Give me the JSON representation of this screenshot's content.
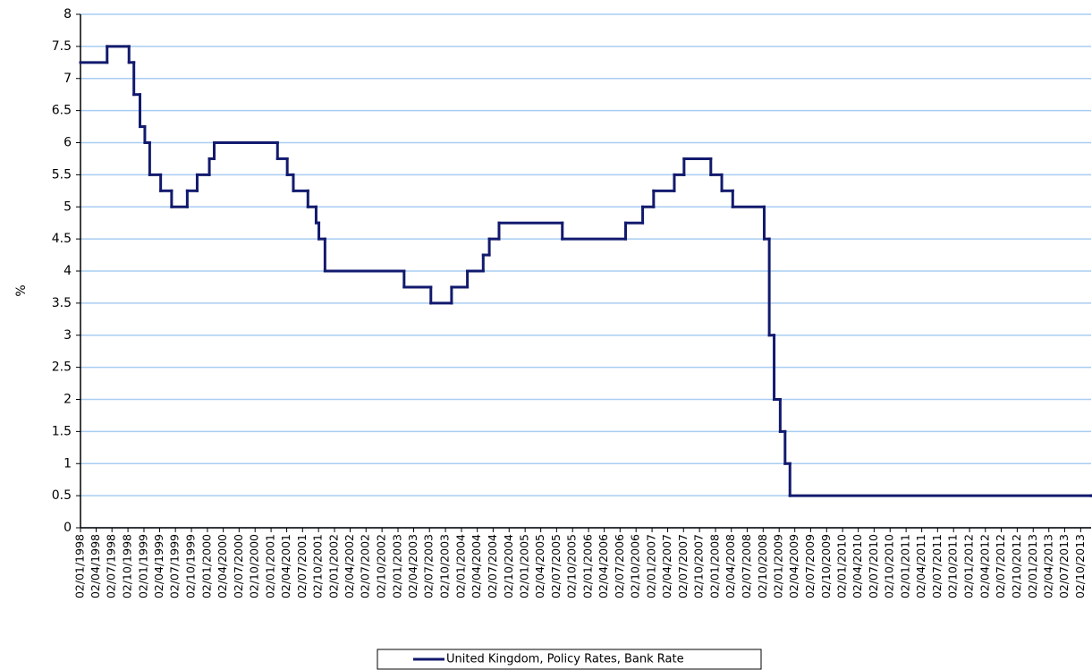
{
  "chart_data": {
    "type": "line",
    "step": true,
    "y_label": "%",
    "grid": true,
    "series": [
      {
        "name": "United Kingdom, Policy Rates, Bank Rate",
        "color": "#121a6e",
        "x": [
          "1998-01-02",
          "1998-06-04",
          "1998-10-08",
          "1998-11-05",
          "1998-12-10",
          "1999-01-07",
          "1999-02-04",
          "1999-04-08",
          "1999-06-10",
          "1999-09-08",
          "1999-11-04",
          "2000-01-13",
          "2000-02-10",
          "2001-02-08",
          "2001-04-05",
          "2001-05-10",
          "2001-08-02",
          "2001-09-18",
          "2001-10-04",
          "2001-11-08",
          "2003-02-06",
          "2003-07-10",
          "2003-11-06",
          "2004-02-05",
          "2004-05-06",
          "2004-06-10",
          "2004-08-05",
          "2005-08-04",
          "2006-08-03",
          "2006-11-09",
          "2007-01-11",
          "2007-05-10",
          "2007-07-05",
          "2007-12-06",
          "2008-02-07",
          "2008-04-10",
          "2008-10-08",
          "2008-11-06",
          "2008-12-04",
          "2009-01-08",
          "2009-02-05",
          "2009-03-05",
          "2013-12-01"
        ],
        "values": [
          7.25,
          7.5,
          7.25,
          6.75,
          6.25,
          6,
          5.5,
          5.25,
          5,
          5.25,
          5.5,
          5.75,
          6,
          5.75,
          5.5,
          5.25,
          5,
          4.75,
          4.5,
          4,
          3.75,
          3.5,
          3.75,
          4,
          4.25,
          4.5,
          4.75,
          4.5,
          4.75,
          5,
          5.25,
          5.5,
          5.75,
          5.5,
          5.25,
          5,
          4.5,
          3,
          2,
          1.5,
          1,
          0.5,
          0.5
        ]
      }
    ],
    "ylim": [
      0,
      8
    ],
    "yticks": [
      0,
      {
        "value": 0.5,
        "label": "0.5"
      },
      1,
      {
        "value": 1.5,
        "label": "1.5"
      },
      2,
      {
        "value": 2.5,
        "label": "2.5"
      },
      3,
      {
        "value": 3.5,
        "label": "3.5"
      },
      4,
      {
        "value": 4.5,
        "label": "4.5"
      },
      5,
      {
        "value": 5.5,
        "label": "5.5"
      },
      6,
      {
        "value": 6.5,
        "label": "6.5"
      },
      7,
      {
        "value": 7.5,
        "label": "7.5"
      },
      8
    ],
    "xlim": [
      "1998-01-02",
      "2013-12-01"
    ],
    "xticks": [
      {
        "value": "1998-01-02",
        "label": "02/01/1998"
      },
      {
        "value": "1998-04-02",
        "label": "02/04/1998"
      },
      {
        "value": "1998-07-02",
        "label": "02/07/1998"
      },
      {
        "value": "1998-10-02",
        "label": "02/10/1998"
      },
      {
        "value": "1999-01-02",
        "label": "02/01/1999"
      },
      {
        "value": "1999-04-02",
        "label": "02/04/1999"
      },
      {
        "value": "1999-07-02",
        "label": "02/07/1999"
      },
      {
        "value": "1999-10-02",
        "label": "02/10/1999"
      },
      {
        "value": "2000-01-02",
        "label": "02/01/2000"
      },
      {
        "value": "2000-04-02",
        "label": "02/04/2000"
      },
      {
        "value": "2000-07-02",
        "label": "02/07/2000"
      },
      {
        "value": "2000-10-02",
        "label": "02/10/2000"
      },
      {
        "value": "2001-01-02",
        "label": "02/01/2001"
      },
      {
        "value": "2001-04-02",
        "label": "02/04/2001"
      },
      {
        "value": "2001-07-02",
        "label": "02/07/2001"
      },
      {
        "value": "2001-10-02",
        "label": "02/10/2001"
      },
      {
        "value": "2002-01-02",
        "label": "02/01/2002"
      },
      {
        "value": "2002-04-02",
        "label": "02/04/2002"
      },
      {
        "value": "2002-07-02",
        "label": "02/07/2002"
      },
      {
        "value": "2002-10-02",
        "label": "02/10/2002"
      },
      {
        "value": "2003-01-02",
        "label": "02/01/2003"
      },
      {
        "value": "2003-04-02",
        "label": "02/04/2003"
      },
      {
        "value": "2003-07-02",
        "label": "02/07/2003"
      },
      {
        "value": "2003-10-02",
        "label": "02/10/2003"
      },
      {
        "value": "2004-01-02",
        "label": "02/01/2004"
      },
      {
        "value": "2004-04-02",
        "label": "02/04/2004"
      },
      {
        "value": "2004-07-02",
        "label": "02/07/2004"
      },
      {
        "value": "2004-10-02",
        "label": "02/10/2004"
      },
      {
        "value": "2005-01-02",
        "label": "02/01/2005"
      },
      {
        "value": "2005-04-02",
        "label": "02/04/2005"
      },
      {
        "value": "2005-07-02",
        "label": "02/07/2005"
      },
      {
        "value": "2005-10-02",
        "label": "02/10/2005"
      },
      {
        "value": "2006-01-02",
        "label": "02/01/2006"
      },
      {
        "value": "2006-04-02",
        "label": "02/04/2006"
      },
      {
        "value": "2006-07-02",
        "label": "02/07/2006"
      },
      {
        "value": "2006-10-02",
        "label": "02/10/2006"
      },
      {
        "value": "2007-01-02",
        "label": "02/01/2007"
      },
      {
        "value": "2007-04-02",
        "label": "02/04/2007"
      },
      {
        "value": "2007-07-02",
        "label": "02/07/2007"
      },
      {
        "value": "2007-10-02",
        "label": "02/10/2007"
      },
      {
        "value": "2008-01-02",
        "label": "02/01/2008"
      },
      {
        "value": "2008-04-02",
        "label": "02/04/2008"
      },
      {
        "value": "2008-07-02",
        "label": "02/07/2008"
      },
      {
        "value": "2008-10-02",
        "label": "02/10/2008"
      },
      {
        "value": "2009-01-02",
        "label": "02/01/2009"
      },
      {
        "value": "2009-04-02",
        "label": "02/04/2009"
      },
      {
        "value": "2009-07-02",
        "label": "02/07/2009"
      },
      {
        "value": "2009-10-02",
        "label": "02/10/2009"
      },
      {
        "value": "2010-01-02",
        "label": "02/01/2010"
      },
      {
        "value": "2010-04-02",
        "label": "02/04/2010"
      },
      {
        "value": "2010-07-02",
        "label": "02/07/2010"
      },
      {
        "value": "2010-10-02",
        "label": "02/10/2010"
      },
      {
        "value": "2011-01-02",
        "label": "02/01/2011"
      },
      {
        "value": "2011-04-02",
        "label": "02/04/2011"
      },
      {
        "value": "2011-07-02",
        "label": "02/07/2011"
      },
      {
        "value": "2011-10-02",
        "label": "02/10/2011"
      },
      {
        "value": "2012-01-02",
        "label": "02/01/2012"
      },
      {
        "value": "2012-04-02",
        "label": "02/04/2012"
      },
      {
        "value": "2012-07-02",
        "label": "02/07/2012"
      },
      {
        "value": "2012-10-02",
        "label": "02/10/2012"
      },
      {
        "value": "2013-01-02",
        "label": "02/01/2013"
      },
      {
        "value": "2013-04-02",
        "label": "02/04/2013"
      },
      {
        "value": "2013-07-02",
        "label": "02/07/2013"
      },
      {
        "value": "2013-10-02",
        "label": "02/10/2013"
      }
    ]
  }
}
